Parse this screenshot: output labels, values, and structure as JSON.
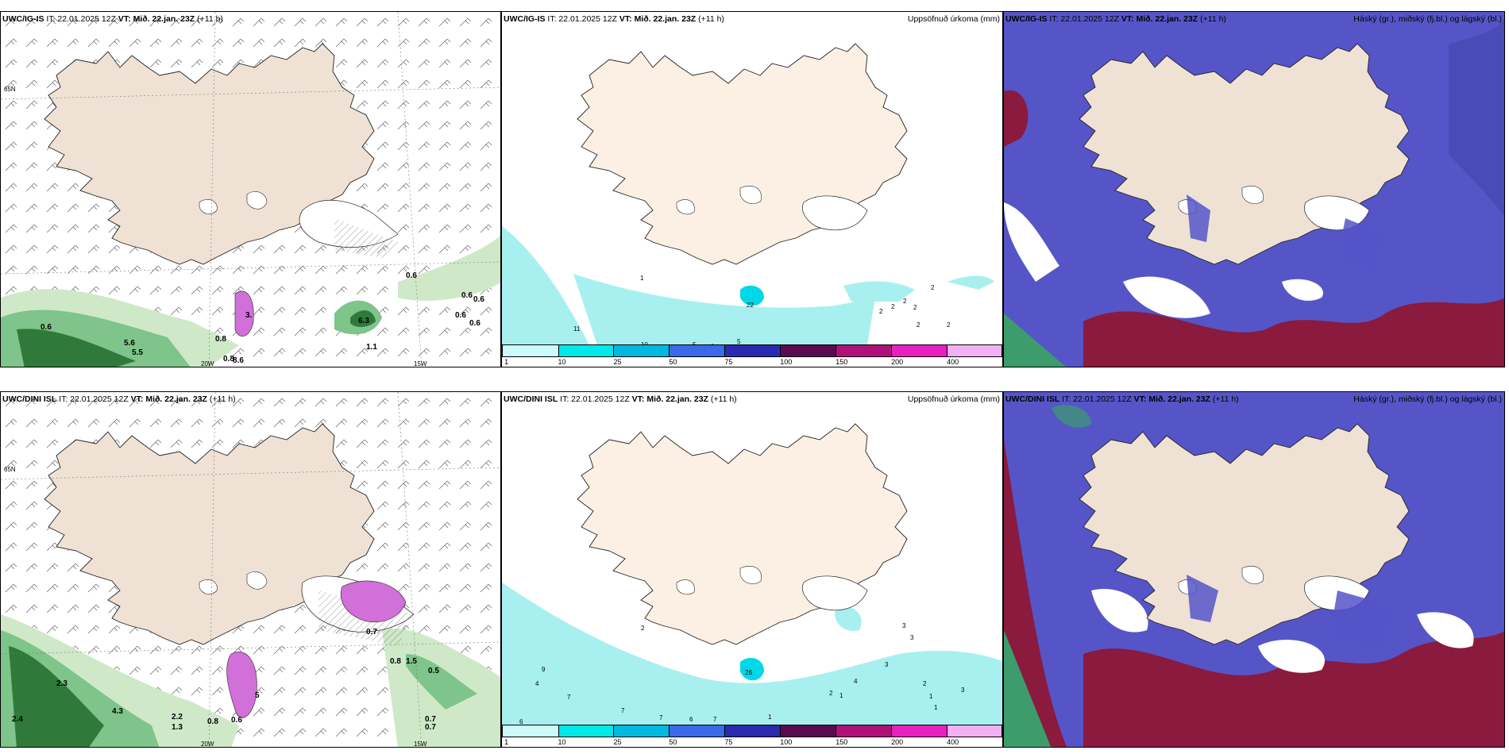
{
  "colors": {
    "land": "#efe2d4",
    "land_fill": "#fbf0e3",
    "coast": "#222222",
    "green_light": "#cfe9c8",
    "green_mid": "#7fc48a",
    "green_dark": "#2f7a3a",
    "magenta": "#d070d8",
    "cyan": "#a8f0f0",
    "cloud_blue": "#5555c8",
    "cloud_red": "#8a1a3e",
    "cloud_green": "#3c9c6c"
  },
  "rows": [
    {
      "model": "UWC/IG-IS",
      "it": "IT: 22.01.2025 12Z",
      "vt_label": "VT:",
      "vt": "Mið. 22.jan. 23Z",
      "lead": "(+11 h)",
      "wind_labels": [
        "3.",
        "0.6",
        "5.6",
        "5.5",
        "0.8",
        "0.8",
        "8.6",
        "6.3",
        "1.1",
        "0.6",
        "0.6",
        "0.6",
        "0.6",
        "0.6"
      ],
      "precip_labels": [
        "11",
        "10",
        "5",
        "4",
        "5",
        "1",
        "22",
        "2",
        "2",
        "2",
        "2",
        "2",
        "2",
        "2"
      ],
      "grid": {
        "lat": "65N",
        "lon1": "20W",
        "lon2": "15W"
      }
    },
    {
      "model": "UWC/DINI ISL",
      "it": "IT: 22.01.2025 12Z",
      "vt_label": "VT:",
      "vt": "Mið. 22.jan. 23Z",
      "lead": "(+11 h)",
      "wind_labels": [
        "2.3",
        "2.4",
        "4.3",
        "2.2",
        "1.3",
        "0.8",
        "0.6",
        "5",
        "0.7",
        "0.8",
        "1.5",
        "0.5",
        "0.7",
        "0.7"
      ],
      "precip_labels": [
        "9",
        "4",
        "7",
        "6",
        "7",
        "7",
        "6",
        "7",
        "1",
        "2",
        "3",
        "3",
        "3",
        "4",
        "1",
        "1",
        "2",
        "3",
        "1",
        "2",
        "26"
      ],
      "grid": {
        "lat": "65N",
        "lon1": "20W",
        "lon2": "15W"
      }
    }
  ],
  "precip_title": "Uppsöfnuð úrkoma (mm)",
  "cloud_title": "Háský (gr.), miðský (fj.bl.) og lágský (bl.)",
  "colorbar": {
    "ticks": [
      "1",
      "10",
      "25",
      "50",
      "75",
      "100",
      "150",
      "200",
      "400"
    ],
    "colors": [
      "#cdfafa",
      "#00e8e8",
      "#00b8e0",
      "#3a6ae8",
      "#2a2ab0",
      "#5a0a50",
      "#b0107a",
      "#e820c0",
      "#f4b0f4"
    ]
  }
}
